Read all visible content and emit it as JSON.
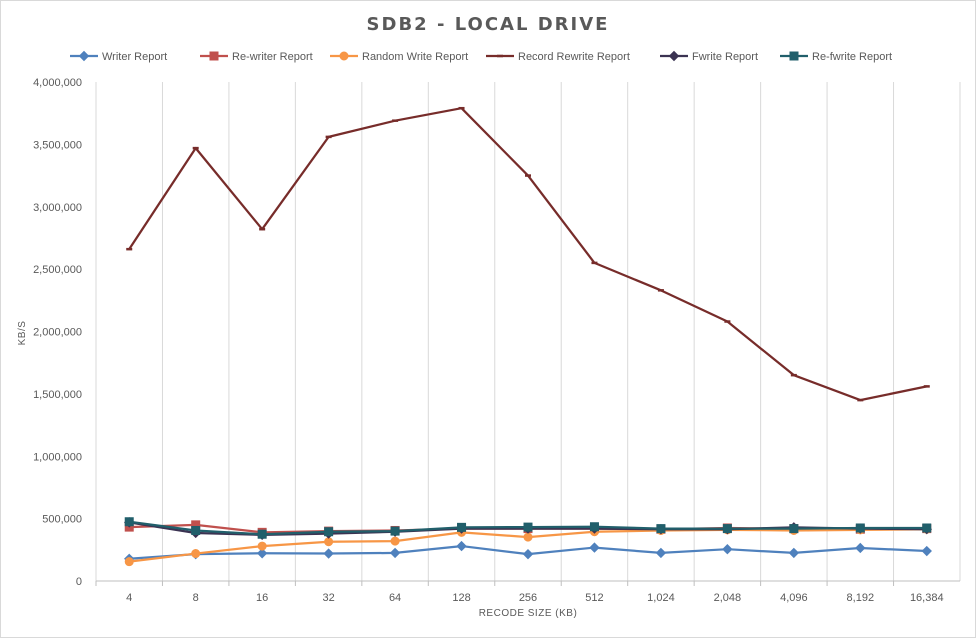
{
  "chart_data": {
    "type": "line",
    "title": "SDB2 - LOCAL DRIVE",
    "xlabel": "RECODE SIZE (KB)",
    "ylabel": "KB/S",
    "ylim": [
      0,
      4000000
    ],
    "yticks": [
      0,
      500000,
      1000000,
      1500000,
      2000000,
      2500000,
      3000000,
      3500000,
      4000000
    ],
    "ytick_labels": [
      "0",
      "500,000",
      "1,000,000",
      "1,500,000",
      "2,000,000",
      "2,500,000",
      "3,000,000",
      "3,500,000",
      "4,000,000"
    ],
    "categories": [
      "4",
      "8",
      "16",
      "32",
      "64",
      "128",
      "256",
      "512",
      "1,024",
      "2,048",
      "4,096",
      "8,192",
      "16,384"
    ],
    "legend_position": "top",
    "grid": "vertical",
    "series": [
      {
        "name": "Writer Report",
        "color": "#4f81bd",
        "marker": "diamond",
        "values": [
          178000,
          215000,
          222000,
          220000,
          225000,
          280000,
          215000,
          268000,
          225000,
          255000,
          225000,
          265000,
          240000
        ]
      },
      {
        "name": "Re-writer Report",
        "color": "#c0504d",
        "marker": "square",
        "values": [
          432000,
          450000,
          390000,
          400000,
          405000,
          420000,
          420000,
          420000,
          415000,
          425000,
          420000,
          415000,
          420000
        ]
      },
      {
        "name": "Random Write Report",
        "color": "#f79646",
        "marker": "circle",
        "values": [
          155000,
          220000,
          280000,
          315000,
          320000,
          390000,
          352000,
          395000,
          405000,
          410000,
          405000,
          410000,
          415000
        ]
      },
      {
        "name": "Record Rewrite Report",
        "color": "#772c2a",
        "marker": "dash",
        "values": [
          2660000,
          3470000,
          2820000,
          3560000,
          3690000,
          3790000,
          3250000,
          2550000,
          2330000,
          2080000,
          1650000,
          1450000,
          1560000
        ]
      },
      {
        "name": "Fwrite Report",
        "color": "#3b3352",
        "marker": "diamond",
        "values": [
          470000,
          385000,
          370000,
          380000,
          395000,
          420000,
          420000,
          420000,
          415000,
          415000,
          430000,
          420000,
          415000
        ]
      },
      {
        "name": "Re-fwrite Report",
        "color": "#215f6b",
        "marker": "square",
        "values": [
          475000,
          405000,
          375000,
          395000,
          400000,
          430000,
          432000,
          435000,
          420000,
          420000,
          420000,
          425000,
          425000
        ]
      }
    ]
  }
}
